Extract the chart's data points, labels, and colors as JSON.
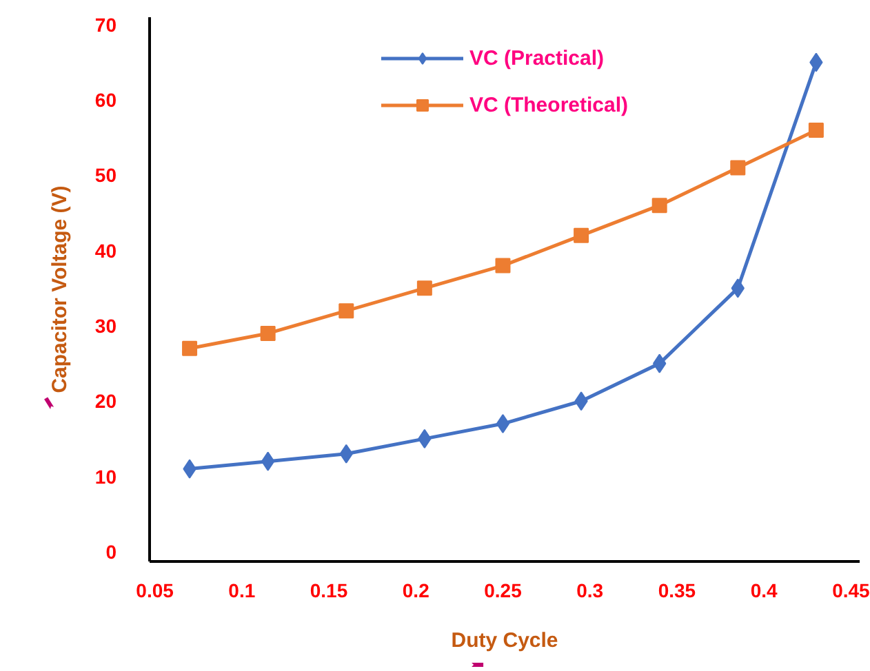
{
  "chart_data": {
    "type": "line",
    "xlabel": "Duty Cycle",
    "ylabel": "Capacitor Voltage (V)",
    "x": [
      0.07,
      0.115,
      0.16,
      0.205,
      0.25,
      0.295,
      0.34,
      0.385,
      0.43
    ],
    "series": [
      {
        "name": "VC (Practical)",
        "color": "#4472c4",
        "marker": "diamond",
        "values": [
          11,
          12,
          13,
          15,
          17,
          20,
          25,
          35,
          65
        ]
      },
      {
        "name": "VC (Theoretical)",
        "color": "#ed7d31",
        "marker": "square",
        "values": [
          27,
          29,
          32,
          35,
          38,
          42,
          46,
          51,
          56
        ]
      }
    ],
    "xlim": [
      0.047,
      0.455
    ],
    "ylim": [
      -1.3,
      71
    ],
    "xticks": [
      0.05,
      0.1,
      0.15,
      0.2,
      0.25,
      0.3,
      0.35,
      0.4,
      0.45
    ],
    "yticks": [
      0,
      10,
      20,
      30,
      40,
      50,
      60,
      70
    ],
    "grid": false,
    "legend": "top",
    "line_style": "solid"
  }
}
